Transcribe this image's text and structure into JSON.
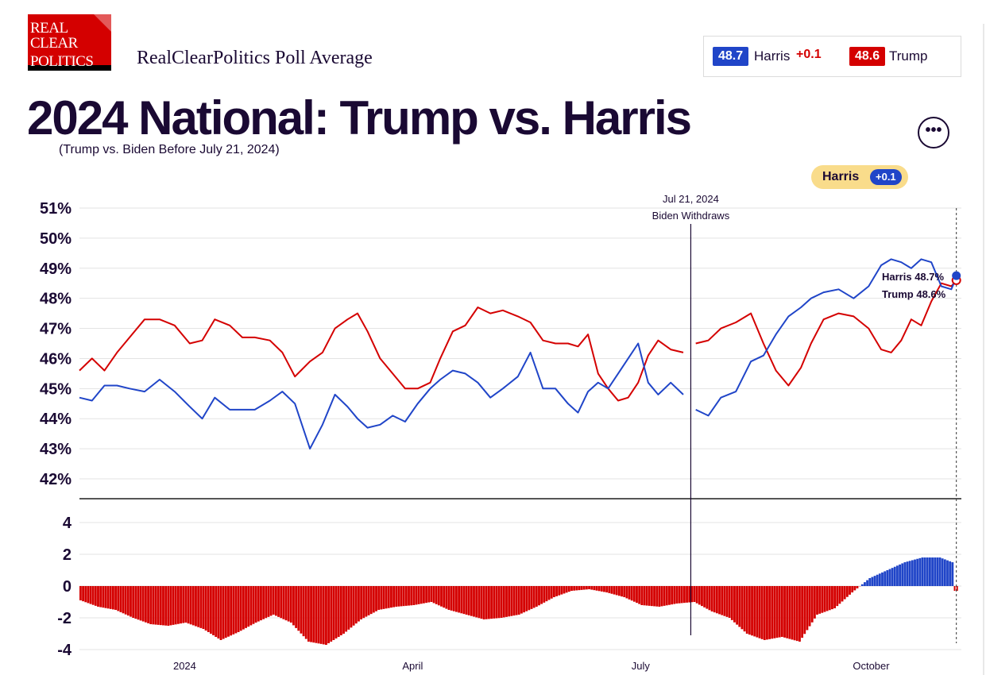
{
  "logo": {
    "line1": "REAL",
    "line2": "CLEAR",
    "line3": "POLITICS"
  },
  "header": {
    "source": "RealClearPolitics Poll Average"
  },
  "legend": {
    "harris_value": "48.7",
    "harris_name": "Harris",
    "harris_spread": "+0.1",
    "trump_value": "48.6",
    "trump_name": "Trump"
  },
  "title": "2024 National: Trump vs. Harris",
  "note": "(Trump vs. Biden Before July 21, 2024)",
  "more_button": "•••",
  "leader": {
    "name": "Harris",
    "spread": "+0.1"
  },
  "colors": {
    "harris": "#2045c8",
    "trump": "#d40000",
    "text": "#1a0933",
    "pill": "#f9dc8b"
  },
  "chart_data": {
    "type": "line",
    "x_range": [
      "2023-11-20",
      "2024-11-06"
    ],
    "x_ticks": [
      {
        "date": "2024-01-01",
        "label": "2024"
      },
      {
        "date": "2024-04-01",
        "label": "April"
      },
      {
        "date": "2024-07-01",
        "label": "July"
      },
      {
        "date": "2024-10-01",
        "label": "October"
      }
    ],
    "ylim": [
      41.4,
      51.2
    ],
    "y_ticks": [
      42,
      43,
      44,
      45,
      46,
      47,
      48,
      49,
      50,
      51
    ],
    "y_tick_format": "%",
    "event": {
      "date": "2024-07-21",
      "label1": "Jul 21, 2024",
      "label2": "Biden Withdraws"
    },
    "current_date": "2024-11-04",
    "series": [
      {
        "name": "Trump",
        "color": "#d40000",
        "points": [
          [
            "2023-11-20",
            45.6
          ],
          [
            "2023-11-25",
            46.0
          ],
          [
            "2023-11-30",
            45.6
          ],
          [
            "2023-12-05",
            46.2
          ],
          [
            "2023-12-10",
            46.7
          ],
          [
            "2023-12-16",
            47.3
          ],
          [
            "2023-12-22",
            47.3
          ],
          [
            "2023-12-28",
            47.1
          ],
          [
            "2024-01-03",
            46.5
          ],
          [
            "2024-01-08",
            46.6
          ],
          [
            "2024-01-13",
            47.3
          ],
          [
            "2024-01-19",
            47.1
          ],
          [
            "2024-01-24",
            46.7
          ],
          [
            "2024-01-29",
            46.7
          ],
          [
            "2024-02-04",
            46.6
          ],
          [
            "2024-02-09",
            46.2
          ],
          [
            "2024-02-14",
            45.4
          ],
          [
            "2024-02-20",
            45.9
          ],
          [
            "2024-02-25",
            46.2
          ],
          [
            "2024-03-01",
            47.0
          ],
          [
            "2024-03-06",
            47.3
          ],
          [
            "2024-03-10",
            47.5
          ],
          [
            "2024-03-14",
            46.9
          ],
          [
            "2024-03-19",
            46.0
          ],
          [
            "2024-03-24",
            45.5
          ],
          [
            "2024-03-29",
            45.0
          ],
          [
            "2024-04-03",
            45.0
          ],
          [
            "2024-04-08",
            45.2
          ],
          [
            "2024-04-12",
            46.0
          ],
          [
            "2024-04-17",
            46.9
          ],
          [
            "2024-04-22",
            47.1
          ],
          [
            "2024-04-27",
            47.7
          ],
          [
            "2024-05-02",
            47.5
          ],
          [
            "2024-05-07",
            47.6
          ],
          [
            "2024-05-13",
            47.4
          ],
          [
            "2024-05-18",
            47.2
          ],
          [
            "2024-05-23",
            46.6
          ],
          [
            "2024-05-28",
            46.5
          ],
          [
            "2024-06-02",
            46.5
          ],
          [
            "2024-06-06",
            46.4
          ],
          [
            "2024-06-10",
            46.8
          ],
          [
            "2024-06-14",
            45.5
          ],
          [
            "2024-06-18",
            45.0
          ],
          [
            "2024-06-22",
            44.6
          ],
          [
            "2024-06-26",
            44.7
          ],
          [
            "2024-06-30",
            45.2
          ],
          [
            "2024-07-04",
            46.1
          ],
          [
            "2024-07-08",
            46.6
          ],
          [
            "2024-07-13",
            46.3
          ],
          [
            "2024-07-18",
            46.2
          ],
          [
            "2024-07-23",
            46.5
          ],
          [
            "2024-07-28",
            46.6
          ],
          [
            "2024-08-02",
            47.0
          ],
          [
            "2024-08-08",
            47.2
          ],
          [
            "2024-08-14",
            47.5
          ],
          [
            "2024-08-19",
            46.5
          ],
          [
            "2024-08-24",
            45.6
          ],
          [
            "2024-08-29",
            45.1
          ],
          [
            "2024-09-03",
            45.7
          ],
          [
            "2024-09-07",
            46.5
          ],
          [
            "2024-09-12",
            47.3
          ],
          [
            "2024-09-18",
            47.5
          ],
          [
            "2024-09-24",
            47.4
          ],
          [
            "2024-09-30",
            47.0
          ],
          [
            "2024-10-05",
            46.3
          ],
          [
            "2024-10-09",
            46.2
          ],
          [
            "2024-10-13",
            46.6
          ],
          [
            "2024-10-17",
            47.3
          ],
          [
            "2024-10-21",
            47.1
          ],
          [
            "2024-10-25",
            47.9
          ],
          [
            "2024-10-29",
            48.5
          ],
          [
            "2024-11-02",
            48.4
          ],
          [
            "2024-11-04",
            48.6
          ]
        ]
      },
      {
        "name": "Harris",
        "color": "#2045c8",
        "points": [
          [
            "2023-11-20",
            44.7
          ],
          [
            "2023-11-25",
            44.6
          ],
          [
            "2023-11-30",
            45.1
          ],
          [
            "2023-12-05",
            45.1
          ],
          [
            "2023-12-10",
            45.0
          ],
          [
            "2023-12-16",
            44.9
          ],
          [
            "2023-12-22",
            45.3
          ],
          [
            "2023-12-28",
            44.9
          ],
          [
            "2024-01-03",
            44.4
          ],
          [
            "2024-01-08",
            44.0
          ],
          [
            "2024-01-13",
            44.7
          ],
          [
            "2024-01-19",
            44.3
          ],
          [
            "2024-01-24",
            44.3
          ],
          [
            "2024-01-29",
            44.3
          ],
          [
            "2024-02-04",
            44.6
          ],
          [
            "2024-02-09",
            44.9
          ],
          [
            "2024-02-14",
            44.5
          ],
          [
            "2024-02-20",
            43.0
          ],
          [
            "2024-02-25",
            43.8
          ],
          [
            "2024-03-01",
            44.8
          ],
          [
            "2024-03-06",
            44.4
          ],
          [
            "2024-03-10",
            44.0
          ],
          [
            "2024-03-14",
            43.7
          ],
          [
            "2024-03-19",
            43.8
          ],
          [
            "2024-03-24",
            44.1
          ],
          [
            "2024-03-29",
            43.9
          ],
          [
            "2024-04-03",
            44.5
          ],
          [
            "2024-04-08",
            45.0
          ],
          [
            "2024-04-12",
            45.3
          ],
          [
            "2024-04-17",
            45.6
          ],
          [
            "2024-04-22",
            45.5
          ],
          [
            "2024-04-27",
            45.2
          ],
          [
            "2024-05-02",
            44.7
          ],
          [
            "2024-05-07",
            45.0
          ],
          [
            "2024-05-13",
            45.4
          ],
          [
            "2024-05-18",
            46.2
          ],
          [
            "2024-05-23",
            45.0
          ],
          [
            "2024-05-28",
            45.0
          ],
          [
            "2024-06-02",
            44.5
          ],
          [
            "2024-06-06",
            44.2
          ],
          [
            "2024-06-10",
            44.9
          ],
          [
            "2024-06-14",
            45.2
          ],
          [
            "2024-06-18",
            45.0
          ],
          [
            "2024-06-22",
            45.5
          ],
          [
            "2024-06-26",
            46.0
          ],
          [
            "2024-06-30",
            46.5
          ],
          [
            "2024-07-04",
            45.2
          ],
          [
            "2024-07-08",
            44.8
          ],
          [
            "2024-07-13",
            45.2
          ],
          [
            "2024-07-18",
            44.8
          ],
          [
            "2024-07-23",
            44.3
          ],
          [
            "2024-07-28",
            44.1
          ],
          [
            "2024-08-02",
            44.7
          ],
          [
            "2024-08-08",
            44.9
          ],
          [
            "2024-08-14",
            45.9
          ],
          [
            "2024-08-19",
            46.1
          ],
          [
            "2024-08-24",
            46.8
          ],
          [
            "2024-08-29",
            47.4
          ],
          [
            "2024-09-03",
            47.7
          ],
          [
            "2024-09-07",
            48.0
          ],
          [
            "2024-09-12",
            48.2
          ],
          [
            "2024-09-18",
            48.3
          ],
          [
            "2024-09-24",
            48.0
          ],
          [
            "2024-09-30",
            48.4
          ],
          [
            "2024-10-05",
            49.1
          ],
          [
            "2024-10-09",
            49.3
          ],
          [
            "2024-10-13",
            49.2
          ],
          [
            "2024-10-17",
            49.0
          ],
          [
            "2024-10-21",
            49.3
          ],
          [
            "2024-10-25",
            49.2
          ],
          [
            "2024-10-29",
            48.4
          ],
          [
            "2024-11-02",
            48.3
          ],
          [
            "2024-11-04",
            48.7
          ]
        ]
      }
    ],
    "current_labels": [
      {
        "name": "Harris",
        "value": "48.7%",
        "color": "#2045c8"
      },
      {
        "name": "Trump",
        "value": "48.6%",
        "color": "#d40000"
      }
    ],
    "spread": {
      "type": "bar",
      "ylim": [
        -4.2,
        4.8
      ],
      "y_ticks": [
        -4,
        -2,
        0,
        2,
        4
      ],
      "positive_color": "#2045c8",
      "negative_color": "#d40000",
      "points": [
        [
          "2023-11-20",
          -0.9
        ],
        [
          "2023-11-27",
          -1.3
        ],
        [
          "2023-12-04",
          -1.5
        ],
        [
          "2023-12-11",
          -2.0
        ],
        [
          "2023-12-18",
          -2.4
        ],
        [
          "2023-12-25",
          -2.5
        ],
        [
          "2024-01-01",
          -2.3
        ],
        [
          "2024-01-08",
          -2.7
        ],
        [
          "2024-01-15",
          -3.4
        ],
        [
          "2024-01-22",
          -2.9
        ],
        [
          "2024-01-29",
          -2.3
        ],
        [
          "2024-02-05",
          -1.8
        ],
        [
          "2024-02-12",
          -2.3
        ],
        [
          "2024-02-19",
          -3.5
        ],
        [
          "2024-02-26",
          -3.7
        ],
        [
          "2024-03-04",
          -3.0
        ],
        [
          "2024-03-11",
          -2.1
        ],
        [
          "2024-03-18",
          -1.5
        ],
        [
          "2024-03-25",
          -1.3
        ],
        [
          "2024-04-01",
          -1.2
        ],
        [
          "2024-04-08",
          -1.0
        ],
        [
          "2024-04-15",
          -1.5
        ],
        [
          "2024-04-22",
          -1.8
        ],
        [
          "2024-04-29",
          -2.1
        ],
        [
          "2024-05-06",
          -2.0
        ],
        [
          "2024-05-13",
          -1.8
        ],
        [
          "2024-05-20",
          -1.3
        ],
        [
          "2024-05-27",
          -0.7
        ],
        [
          "2024-06-03",
          -0.3
        ],
        [
          "2024-06-10",
          -0.2
        ],
        [
          "2024-06-17",
          -0.4
        ],
        [
          "2024-06-24",
          -0.7
        ],
        [
          "2024-07-01",
          -1.2
        ],
        [
          "2024-07-08",
          -1.3
        ],
        [
          "2024-07-15",
          -1.1
        ],
        [
          "2024-07-22",
          -1.0
        ],
        [
          "2024-07-29",
          -1.6
        ],
        [
          "2024-08-05",
          -2.0
        ],
        [
          "2024-08-12",
          -3.0
        ],
        [
          "2024-08-19",
          -3.4
        ],
        [
          "2024-08-26",
          -3.2
        ],
        [
          "2024-09-02",
          -3.5
        ],
        [
          "2024-09-09",
          -1.8
        ],
        [
          "2024-09-16",
          -1.4
        ],
        [
          "2024-09-23",
          -0.4
        ],
        [
          "2024-09-30",
          0.5
        ],
        [
          "2024-10-07",
          1.0
        ],
        [
          "2024-10-14",
          1.5
        ],
        [
          "2024-10-21",
          1.8
        ],
        [
          "2024-10-28",
          1.8
        ],
        [
          "2024-11-02",
          1.5
        ]
      ]
    }
  }
}
